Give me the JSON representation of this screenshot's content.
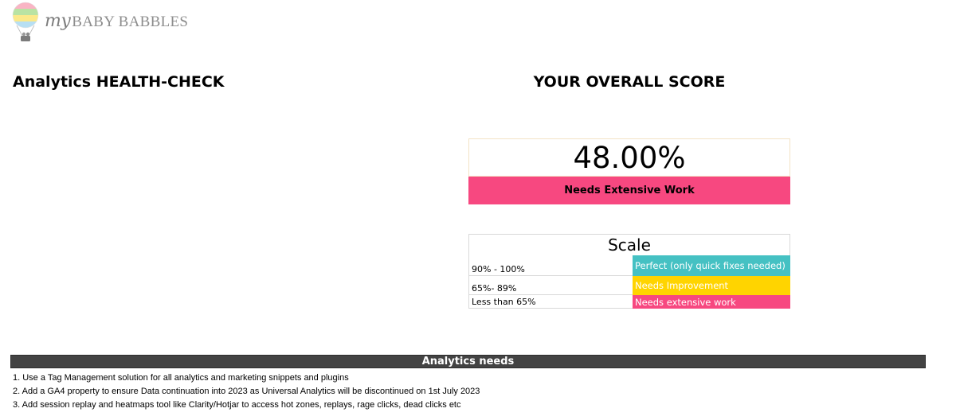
{
  "logo": {
    "my": "my",
    "brand": "BABY BABBLES"
  },
  "page": {
    "left_title": "Analytics HEALTH-CHECK",
    "right_title": "YOUR OVERALL SCORE"
  },
  "score": {
    "value": "48.00%",
    "status": "Needs Extensive Work",
    "status_color": "#f74880"
  },
  "scale": {
    "title": "Scale",
    "rows": [
      {
        "range": "90% - 100%",
        "label": "Perfect (only quick fixes needed)",
        "color": "#45c1c3"
      },
      {
        "range": "65%- 89%",
        "label": "Needs Improvement",
        "color": "#ffd400"
      },
      {
        "range": "Less than 65%",
        "label": "Needs extensive work",
        "color": "#f74880"
      }
    ]
  },
  "needs": {
    "title": "Analytics needs",
    "items": [
      "1. Use a Tag Management solution for all analytics and marketing snippets and plugins",
      "2. Add a GA4 property to ensure Data continuation into 2023 as Universal Analytics will be discontinued on 1st July 2023",
      "3. Add session replay and heatmaps tool like Clarity/Hotjar to access hot zones, replays, rage clicks, dead clicks etc"
    ]
  }
}
